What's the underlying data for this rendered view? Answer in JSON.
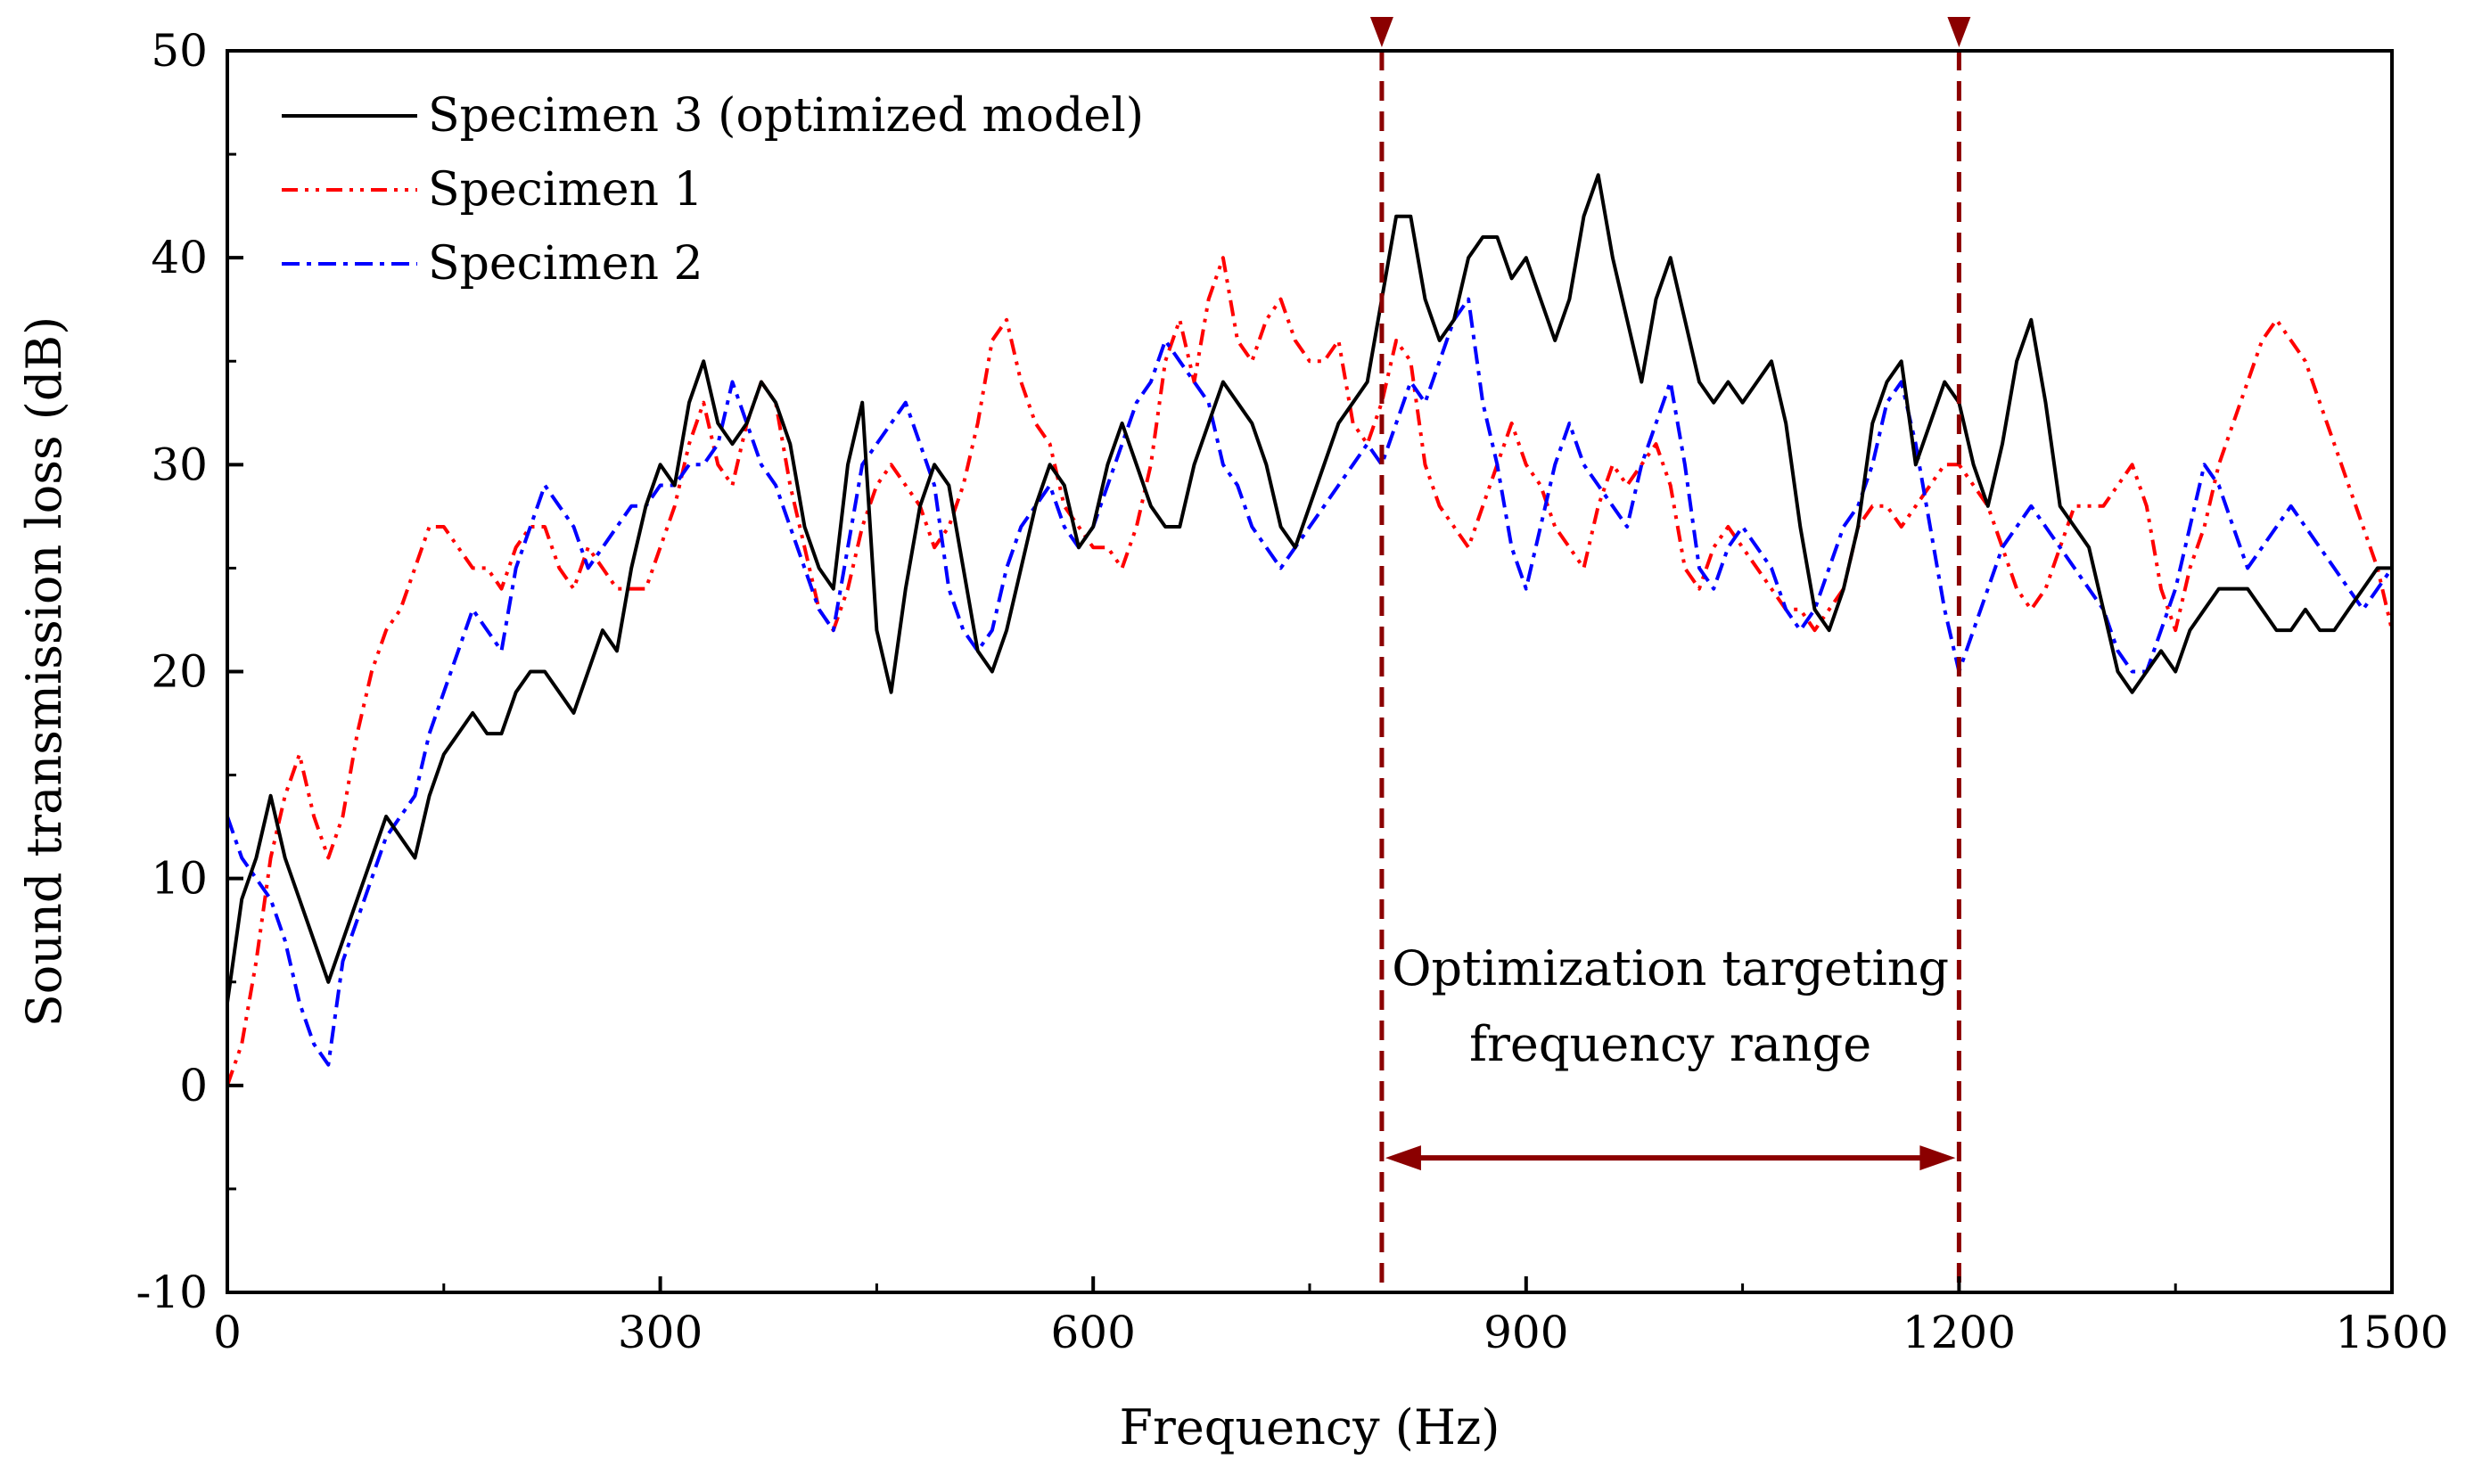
{
  "chart_data": {
    "type": "line",
    "xlabel": "Frequency (Hz)",
    "ylabel": "Sound transmission loss (dB)",
    "xlim": [
      0,
      1500
    ],
    "ylim": [
      -10,
      50
    ],
    "xticks": [
      0,
      300,
      600,
      900,
      1200,
      1500
    ],
    "yticks": [
      -10,
      0,
      10,
      20,
      30,
      40,
      50
    ],
    "grid": false,
    "legend_position": "top-left",
    "series": [
      {
        "name": "Specimen 3 (optimized model)",
        "color": "#000000",
        "style": "solid",
        "x": [
          0,
          10,
          20,
          30,
          40,
          50,
          60,
          70,
          80,
          90,
          100,
          110,
          120,
          130,
          140,
          150,
          160,
          170,
          180,
          190,
          200,
          210,
          220,
          230,
          240,
          250,
          260,
          270,
          280,
          290,
          300,
          310,
          320,
          330,
          340,
          350,
          360,
          370,
          380,
          390,
          400,
          410,
          420,
          430,
          440,
          450,
          460,
          470,
          480,
          490,
          500,
          510,
          520,
          530,
          540,
          550,
          560,
          570,
          580,
          590,
          600,
          610,
          620,
          630,
          640,
          650,
          660,
          670,
          680,
          690,
          700,
          710,
          720,
          730,
          740,
          750,
          760,
          770,
          780,
          790,
          800,
          810,
          820,
          830,
          840,
          850,
          860,
          870,
          880,
          890,
          900,
          910,
          920,
          930,
          940,
          950,
          960,
          970,
          980,
          990,
          1000,
          1010,
          1020,
          1030,
          1040,
          1050,
          1060,
          1070,
          1080,
          1090,
          1100,
          1110,
          1120,
          1130,
          1140,
          1150,
          1160,
          1170,
          1180,
          1190,
          1200,
          1210,
          1220,
          1230,
          1240,
          1250,
          1260,
          1270,
          1280,
          1290,
          1300,
          1310,
          1320,
          1330,
          1340,
          1350,
          1360,
          1370,
          1380,
          1390,
          1400,
          1410,
          1420,
          1430,
          1440,
          1450,
          1460,
          1470,
          1480,
          1490,
          1500
        ],
        "values": [
          4,
          9,
          11,
          14,
          11,
          9,
          7,
          5,
          7,
          9,
          11,
          13,
          12,
          11,
          14,
          16,
          17,
          18,
          17,
          17,
          19,
          20,
          20,
          19,
          18,
          20,
          22,
          21,
          25,
          28,
          30,
          29,
          33,
          35,
          32,
          31,
          32,
          34,
          33,
          31,
          27,
          25,
          24,
          30,
          33,
          22,
          19,
          24,
          28,
          30,
          29,
          25,
          21,
          20,
          22,
          25,
          28,
          30,
          29,
          26,
          27,
          30,
          32,
          30,
          28,
          27,
          27,
          30,
          32,
          34,
          33,
          32,
          30,
          27,
          26,
          28,
          30,
          32,
          33,
          34,
          38,
          42,
          42,
          38,
          36,
          37,
          40,
          41,
          41,
          39,
          40,
          38,
          36,
          38,
          42,
          44,
          40,
          37,
          34,
          38,
          40,
          37,
          34,
          33,
          34,
          33,
          34,
          35,
          32,
          27,
          23,
          22,
          24,
          27,
          32,
          34,
          35,
          30,
          32,
          34,
          33,
          30,
          28,
          31,
          35,
          37,
          33,
          28,
          27,
          26,
          23,
          20,
          19,
          20,
          21,
          20,
          22,
          23,
          24,
          24,
          24,
          23,
          22,
          22,
          23,
          22,
          22,
          23,
          24,
          25,
          25
        ]
      },
      {
        "name": "Specimen 1",
        "color": "#ff0000",
        "style": "dash-dot-dot",
        "x": [
          0,
          10,
          20,
          30,
          40,
          50,
          60,
          70,
          80,
          90,
          100,
          110,
          120,
          130,
          140,
          150,
          160,
          170,
          180,
          190,
          200,
          210,
          220,
          230,
          240,
          250,
          260,
          270,
          280,
          290,
          300,
          310,
          320,
          330,
          340,
          350,
          360,
          370,
          380,
          390,
          400,
          410,
          420,
          430,
          440,
          450,
          460,
          470,
          480,
          490,
          500,
          510,
          520,
          530,
          540,
          550,
          560,
          570,
          580,
          590,
          600,
          610,
          620,
          630,
          640,
          650,
          660,
          670,
          680,
          690,
          700,
          710,
          720,
          730,
          740,
          750,
          760,
          770,
          780,
          790,
          800,
          810,
          820,
          830,
          840,
          850,
          860,
          870,
          880,
          890,
          900,
          910,
          920,
          930,
          940,
          950,
          960,
          970,
          980,
          990,
          1000,
          1010,
          1020,
          1030,
          1040,
          1050,
          1060,
          1070,
          1080,
          1090,
          1100,
          1110,
          1120,
          1130,
          1140,
          1150,
          1160,
          1170,
          1180,
          1190,
          1200,
          1210,
          1220,
          1230,
          1240,
          1250,
          1260,
          1270,
          1280,
          1290,
          1300,
          1310,
          1320,
          1330,
          1340,
          1350,
          1360,
          1370,
          1380,
          1390,
          1400,
          1410,
          1420,
          1430,
          1440,
          1450,
          1460,
          1470,
          1480,
          1490,
          1500
        ],
        "values": [
          0,
          2,
          6,
          11,
          14,
          16,
          13,
          11,
          13,
          17,
          20,
          22,
          23,
          25,
          27,
          27,
          26,
          25,
          25,
          24,
          26,
          27,
          27,
          25,
          24,
          26,
          25,
          24,
          24,
          24,
          26,
          28,
          31,
          33,
          30,
          29,
          32,
          34,
          33,
          29,
          26,
          23,
          22,
          24,
          27,
          29,
          30,
          29,
          28,
          26,
          27,
          29,
          32,
          36,
          37,
          34,
          32,
          31,
          28,
          27,
          26,
          26,
          25,
          27,
          30,
          35,
          37,
          34,
          38,
          40,
          36,
          35,
          37,
          38,
          36,
          35,
          35,
          36,
          32,
          31,
          33,
          36,
          35,
          30,
          28,
          27,
          26,
          28,
          30,
          32,
          30,
          29,
          27,
          26,
          25,
          28,
          30,
          29,
          30,
          31,
          29,
          25,
          24,
          26,
          27,
          26,
          25,
          24,
          23,
          23,
          22,
          23,
          24,
          27,
          28,
          28,
          27,
          28,
          29,
          30,
          30,
          29,
          28,
          26,
          24,
          23,
          24,
          26,
          28,
          28,
          28,
          29,
          30,
          28,
          24,
          22,
          25,
          27,
          30,
          32,
          34,
          36,
          37,
          36,
          35,
          33,
          31,
          29,
          27,
          25,
          22
        ]
      },
      {
        "name": "Specimen 2",
        "color": "#0000ff",
        "style": "dash-dot",
        "x": [
          0,
          10,
          20,
          30,
          40,
          50,
          60,
          70,
          80,
          90,
          100,
          110,
          120,
          130,
          140,
          150,
          160,
          170,
          180,
          190,
          200,
          210,
          220,
          230,
          240,
          250,
          260,
          270,
          280,
          290,
          300,
          310,
          320,
          330,
          340,
          350,
          360,
          370,
          380,
          390,
          400,
          410,
          420,
          430,
          440,
          450,
          460,
          470,
          480,
          490,
          500,
          510,
          520,
          530,
          540,
          550,
          560,
          570,
          580,
          590,
          600,
          610,
          620,
          630,
          640,
          650,
          660,
          670,
          680,
          690,
          700,
          710,
          720,
          730,
          740,
          750,
          760,
          770,
          780,
          790,
          800,
          810,
          820,
          830,
          840,
          850,
          860,
          870,
          880,
          890,
          900,
          910,
          920,
          930,
          940,
          950,
          960,
          970,
          980,
          990,
          1000,
          1010,
          1020,
          1030,
          1040,
          1050,
          1060,
          1070,
          1080,
          1090,
          1100,
          1110,
          1120,
          1130,
          1140,
          1150,
          1160,
          1170,
          1180,
          1190,
          1200,
          1210,
          1220,
          1230,
          1240,
          1250,
          1260,
          1270,
          1280,
          1290,
          1300,
          1310,
          1320,
          1330,
          1340,
          1350,
          1360,
          1370,
          1380,
          1390,
          1400,
          1410,
          1420,
          1430,
          1440,
          1450,
          1460,
          1470,
          1480,
          1490,
          1500
        ],
        "values": [
          13,
          11,
          10,
          9,
          7,
          4,
          2,
          1,
          6,
          8,
          10,
          12,
          13,
          14,
          17,
          19,
          21,
          23,
          22,
          21,
          25,
          27,
          29,
          28,
          27,
          25,
          26,
          27,
          28,
          28,
          29,
          29,
          30,
          30,
          31,
          34,
          32,
          30,
          29,
          27,
          25,
          23,
          22,
          26,
          30,
          31,
          32,
          33,
          31,
          29,
          24,
          22,
          21,
          22,
          25,
          27,
          28,
          29,
          27,
          26,
          27,
          29,
          31,
          33,
          34,
          36,
          35,
          34,
          33,
          30,
          29,
          27,
          26,
          25,
          26,
          27,
          28,
          29,
          30,
          31,
          30,
          32,
          34,
          33,
          35,
          37,
          38,
          33,
          30,
          26,
          24,
          27,
          30,
          32,
          30,
          29,
          28,
          27,
          30,
          32,
          34,
          30,
          25,
          24,
          26,
          27,
          26,
          25,
          23,
          22,
          23,
          25,
          27,
          28,
          30,
          33,
          34,
          31,
          27,
          23,
          20,
          22,
          24,
          26,
          27,
          28,
          27,
          26,
          25,
          24,
          23,
          21,
          20,
          20,
          22,
          24,
          27,
          30,
          29,
          27,
          25,
          26,
          27,
          28,
          27,
          26,
          25,
          24,
          23,
          24,
          25
        ]
      }
    ],
    "annotation": {
      "text_line1": "Optimization targeting",
      "text_line2": "frequency range",
      "x_start": 800,
      "x_end": 1200,
      "arrow_y": -3.5,
      "color": "#8b0000"
    }
  }
}
